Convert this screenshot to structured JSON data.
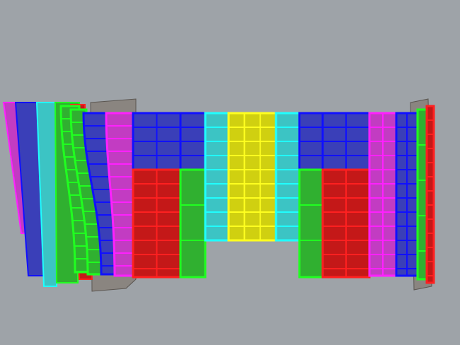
{
  "viewport": {
    "background": "#9ea3a8",
    "panel_colors": {
      "blue": {
        "fill": "#3a3fb8",
        "stroke": "#1010ff"
      },
      "magenta": {
        "fill": "#c23cc2",
        "stroke": "#ff20ff"
      },
      "red": {
        "fill": "#c41818",
        "stroke": "#ff2020"
      },
      "green": {
        "fill": "#30b030",
        "stroke": "#20ff20"
      },
      "cyan": {
        "fill": "#3cc4c4",
        "stroke": "#20ffff"
      },
      "yellow": {
        "fill": "#d0d010",
        "stroke": "#ffff20"
      },
      "backing": {
        "fill": "#8a8580",
        "stroke": "#5a5550"
      }
    }
  }
}
